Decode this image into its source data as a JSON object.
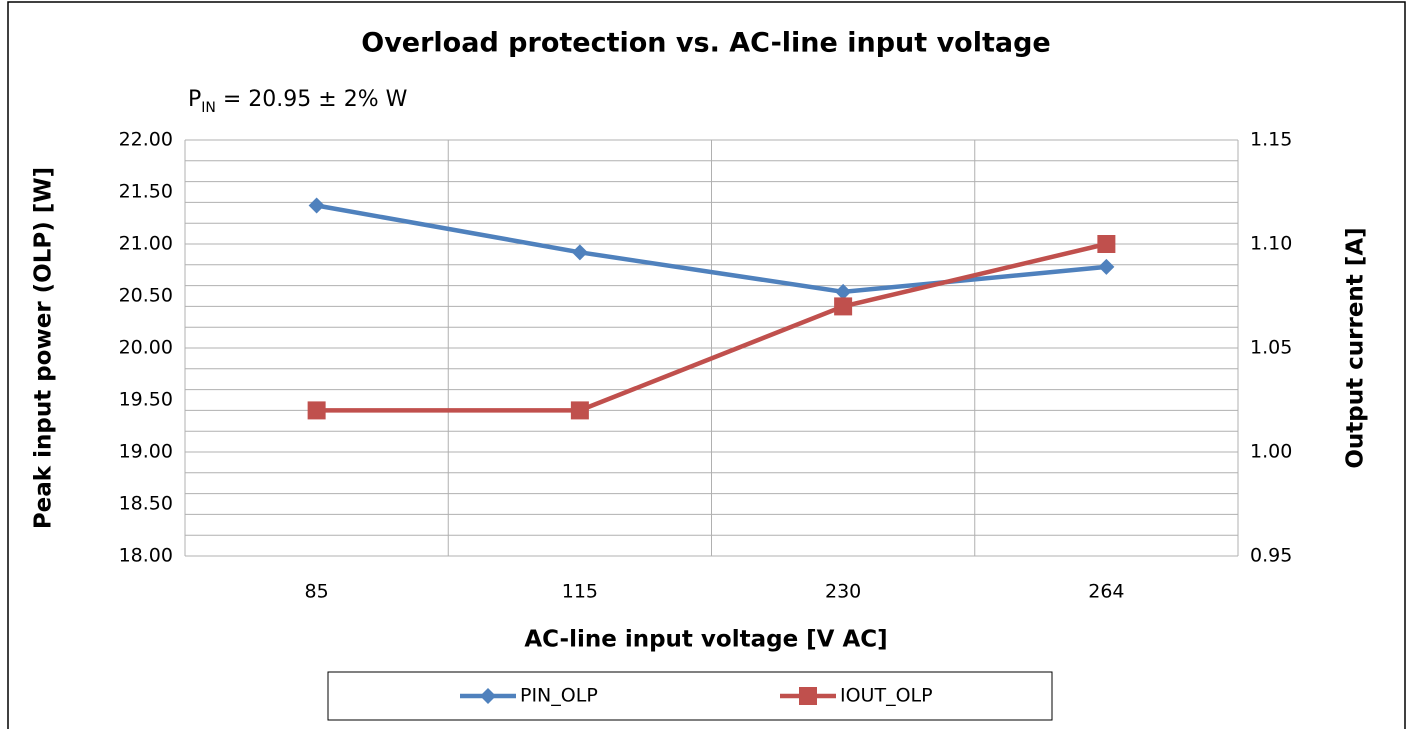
{
  "chart_data": {
    "type": "line",
    "title": "Overload protection vs. AC-line input voltage",
    "subtitle": {
      "main": "P",
      "sub": "IN",
      "rest": " = 20.95 ± 2% W"
    },
    "x_label": "AC-line input voltage [V AC]",
    "y_label": "Peak input power (OLP) [W]",
    "y2_label": "Output current [A]",
    "categories": [
      "85",
      "115",
      "230",
      "264"
    ],
    "series": [
      {
        "name": "PIN_OLP",
        "color": "#4f81bd",
        "marker": "diamond",
        "values": [
          21.37,
          20.92,
          20.54,
          20.78
        ]
      },
      {
        "name": "IOUT_OLP",
        "color": "#c0504d",
        "marker": "square",
        "axis": "y2",
        "values": [
          1.02,
          1.02,
          1.07,
          1.1
        ]
      }
    ],
    "ylim": [
      18,
      22
    ],
    "yticks": [
      {
        "value": 18,
        "label": "18.00"
      },
      {
        "value": 18.5,
        "label": "18.50"
      },
      {
        "value": 19,
        "label": "19.00"
      },
      {
        "value": 19.5,
        "label": "19.50"
      },
      {
        "value": 20,
        "label": "20.00"
      },
      {
        "value": 20.5,
        "label": "20.50"
      },
      {
        "value": 21,
        "label": "21.00"
      },
      {
        "value": 21.5,
        "label": "21.50"
      },
      {
        "value": 22,
        "label": "22.00"
      }
    ],
    "y2lim": [
      0.95,
      1.15
    ],
    "y2ticks": [
      0.95,
      {
        "value": 1,
        "label": "1.00"
      },
      1.05,
      {
        "value": 1.1,
        "label": "1.10"
      },
      1.15
    ],
    "y2_grid": [
      0.95,
      0.96,
      0.97,
      0.98,
      0.99,
      1,
      1.01,
      1.02,
      1.03,
      1.04,
      1.05,
      1.06,
      1.07,
      1.08,
      1.09,
      1.1,
      1.11,
      1.12,
      1.13,
      1.14,
      1.15
    ],
    "grid": true,
    "legend": "bottom"
  }
}
